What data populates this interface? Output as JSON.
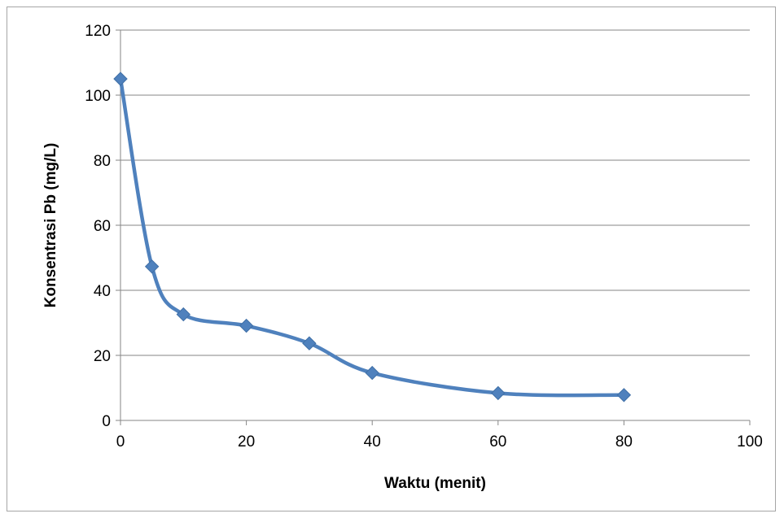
{
  "chart_data": {
    "type": "scatter",
    "title": "",
    "xlabel": "Waktu (menit)",
    "ylabel": "Konsentrasi Pb (mg/L)",
    "xlim": [
      0,
      100
    ],
    "ylim": [
      0,
      120
    ],
    "x_ticks": [
      0,
      20,
      40,
      60,
      80,
      100
    ],
    "y_ticks": [
      0,
      20,
      40,
      60,
      80,
      100,
      120
    ],
    "grid": "horizontal",
    "legend": "none",
    "line_style": "smoothed line with diamond markers",
    "series": [
      {
        "color": "#4f81bd",
        "x": [
          0,
          5,
          10,
          20,
          30,
          40,
          60,
          80
        ],
        "y": [
          105,
          47.3,
          32.6,
          29.1,
          23.7,
          14.6,
          8.4,
          7.8
        ]
      }
    ]
  }
}
